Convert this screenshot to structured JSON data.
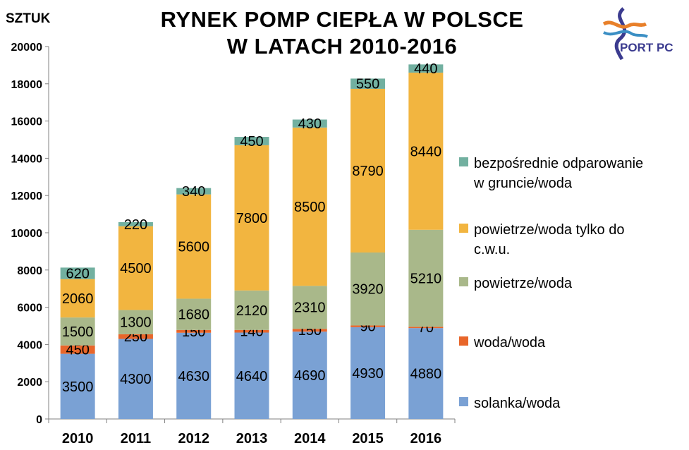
{
  "chart_data": {
    "type": "bar",
    "stacked": true,
    "title_line1": "RYNEK POMP CIEPŁA W POLSCE",
    "title_line2": "W LATACH 2010-2016",
    "ylabel": "SZTUK",
    "ylim": [
      0,
      20000
    ],
    "yticks": [
      0,
      2000,
      4000,
      6000,
      8000,
      10000,
      12000,
      14000,
      16000,
      18000,
      20000
    ],
    "grid": false,
    "legend_position": "right",
    "categories": [
      "2010",
      "2011",
      "2012",
      "2013",
      "2014",
      "2015",
      "2016"
    ],
    "series": [
      {
        "name": "solanka/woda",
        "color": "#7aa1d4",
        "values": [
          3500,
          4300,
          4630,
          4640,
          4690,
          4930,
          4880
        ]
      },
      {
        "name": "woda/woda",
        "color": "#e8662a",
        "values": [
          450,
          250,
          150,
          140,
          150,
          90,
          70
        ]
      },
      {
        "name": "powietrze/woda",
        "color": "#a9b88a",
        "values": [
          1500,
          1300,
          1680,
          2120,
          2310,
          3920,
          5210
        ]
      },
      {
        "name": "powietrze/woda tylko do c.w.u.",
        "color": "#f2b540",
        "values": [
          2060,
          4500,
          5600,
          7800,
          8500,
          8790,
          8440
        ]
      },
      {
        "name": "bezpośrednie odparowanie w gruncie/woda",
        "color": "#72b0a0",
        "values": [
          620,
          220,
          340,
          450,
          430,
          550,
          440
        ]
      }
    ],
    "legend_lines": [
      [
        "bezpośrednie odparowanie",
        "w gruncie/woda"
      ],
      [
        "powietrze/woda tylko do",
        "c.w.u."
      ],
      [
        "powietrze/woda"
      ],
      [
        "woda/woda"
      ],
      [
        "solanka/woda"
      ]
    ]
  },
  "logo": {
    "text": "PORT PC"
  }
}
